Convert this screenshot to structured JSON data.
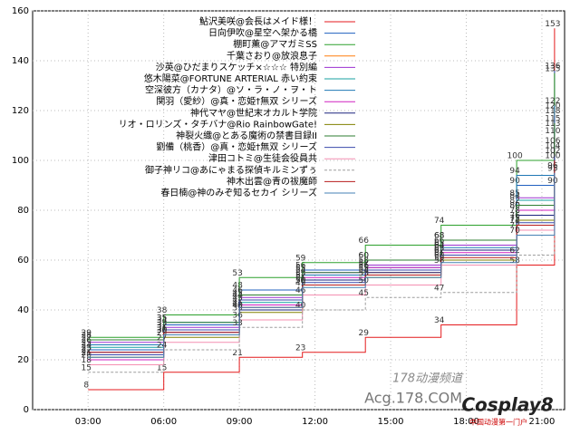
{
  "chart_data": {
    "type": "line",
    "x": [
      3,
      6,
      9,
      11.5,
      14,
      17,
      20,
      21.5
    ],
    "xlim": [
      0.8,
      21.9
    ],
    "xticks": [
      {
        "value": 3,
        "label": "03:00"
      },
      {
        "value": 6,
        "label": "06:00"
      },
      {
        "value": 9,
        "label": "09:00"
      },
      {
        "value": 12,
        "label": "12:00"
      },
      {
        "value": 15,
        "label": "15:00"
      },
      {
        "value": 18,
        "label": "18:00"
      },
      {
        "value": 21,
        "label": "21:00"
      }
    ],
    "ylim": [
      0,
      160
    ],
    "yticks": [
      0,
      20,
      40,
      60,
      80,
      100,
      120,
      140,
      160
    ],
    "grid": true,
    "legend": "top-right",
    "series": [
      {
        "name": "鮎沢美咲@会長はメイド様！",
        "color": "#e41a1c",
        "values": [
          8,
          15,
          21,
          23,
          29,
          34,
          58,
          153
        ]
      },
      {
        "name": "日向伊吹@星空へ架かる橋",
        "color": "#1f5fbf",
        "values": [
          24,
          34,
          48,
          56,
          60,
          68,
          90,
          136
        ]
      },
      {
        "name": "棚町薫@アマガミSS",
        "color": "#2ca02c",
        "values": [
          29,
          38,
          53,
          59,
          66,
          74,
          100,
          135
        ]
      },
      {
        "name": "千葉さおり@放浪息子",
        "color": "#ff7f0e",
        "values": [
          22,
          30,
          40,
          50,
          55,
          62,
          80,
          120
        ]
      },
      {
        "name": "沙英@ひだまりスケッチ×☆☆☆ 特別編",
        "color": "#9b30d0",
        "values": [
          27,
          33,
          45,
          55,
          58,
          66,
          85,
          118
        ]
      },
      {
        "name": "悠木陽菜@FORTUNE ARTERIAL 赤い約束",
        "color": "#17a0a0",
        "values": [
          25,
          32,
          43,
          52,
          56,
          64,
          84,
          113
        ]
      },
      {
        "name": "空深彼方（カナタ）@ソ・ラ・ノ・ヲ・ト",
        "color": "#1f77b4",
        "values": [
          26,
          35,
          44,
          54,
          57,
          65,
          94,
          122
        ]
      },
      {
        "name": "関羽（愛紗）@真・恋姫†無双 シリーズ",
        "color": "#d020c0",
        "values": [
          20,
          30,
          42,
          53,
          57,
          63,
          80,
          110
        ]
      },
      {
        "name": "神代マヤ@世紀末オカルト学院",
        "color": "#1a237e",
        "values": [
          23,
          31,
          40,
          52,
          55,
          64,
          78,
          106
        ]
      },
      {
        "name": "リオ・ロリンズ・タチバナ@Rio RainbowGate!",
        "color": "#808000",
        "values": [
          21,
          29,
          39,
          50,
          53,
          60,
          76,
          104
        ]
      },
      {
        "name": "神裂火織@とある魔術の禁書目録II",
        "color": "#2e7d32",
        "values": [
          28,
          35,
          46,
          55,
          60,
          68,
          82,
          115
        ]
      },
      {
        "name": "劉備（桃香）@真・恋姫†無双 シリーズ",
        "color": "#3949ab",
        "values": [
          22,
          32,
          44,
          51,
          56,
          62,
          75,
          102
        ]
      },
      {
        "name": "津田コトミ@生徒会役員共",
        "color": "#f48fb1",
        "values": [
          18,
          27,
          36,
          46,
          50,
          58,
          72,
          96
        ]
      },
      {
        "name": "御子神リコ@あにゃまる探偵キルミンずぅ",
        "color": "#9e9e9e",
        "values": [
          15,
          24,
          33,
          40,
          45,
          47,
          62,
          90
        ]
      },
      {
        "name": "神木出雲@青の祓魔師",
        "color": "#b71c1c",
        "values": [
          23,
          31,
          41,
          50,
          54,
          61,
          74,
          100
        ]
      },
      {
        "name": "春日楠@神のみぞ知るセカイ シリーズ",
        "color": "#4682b4",
        "values": [
          21,
          30,
          41,
          49,
          53,
          59,
          70,
          95
        ]
      }
    ],
    "watermarks": [
      "178动漫频道",
      "Acg.178.COM",
      "Cosplay8",
      "中国动漫第一门户"
    ]
  }
}
